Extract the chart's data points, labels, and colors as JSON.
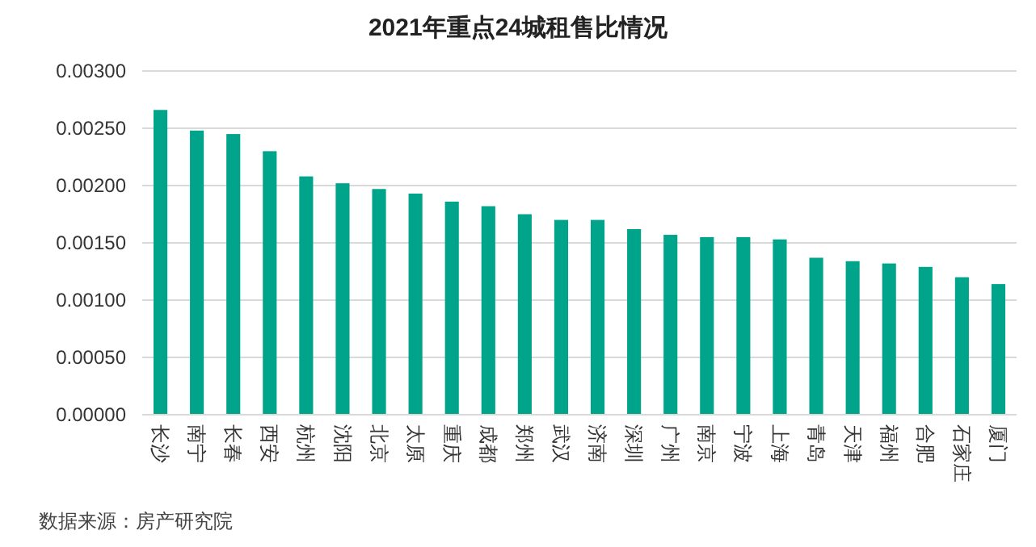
{
  "chart_data": {
    "type": "bar",
    "title": "2021年重点24城租售比情况",
    "categories": [
      "长沙",
      "南宁",
      "长春",
      "西安",
      "杭州",
      "沈阳",
      "北京",
      "太原",
      "重庆",
      "成都",
      "郑州",
      "武汉",
      "济南",
      "深圳",
      "广州",
      "南京",
      "宁波",
      "上海",
      "青岛",
      "天津",
      "福州",
      "合肥",
      "石家庄",
      "厦门"
    ],
    "values": [
      0.00266,
      0.00248,
      0.00245,
      0.0023,
      0.00208,
      0.00202,
      0.00197,
      0.00193,
      0.00186,
      0.00182,
      0.00175,
      0.0017,
      0.0017,
      0.00162,
      0.00157,
      0.00155,
      0.00155,
      0.00153,
      0.00137,
      0.00134,
      0.00132,
      0.00129,
      0.0012,
      0.00114
    ],
    "color": "#00a48a",
    "ylim": [
      0,
      0.003
    ],
    "yticks": [
      {
        "value": 0,
        "label": "0.00000"
      },
      {
        "value": 0.0005,
        "label": "0.00050"
      },
      {
        "value": 0.001,
        "label": "0.00100"
      },
      {
        "value": 0.0015,
        "label": "0.00150"
      },
      {
        "value": 0.002,
        "label": "0.00200"
      },
      {
        "value": 0.0025,
        "label": "0.00250"
      },
      {
        "value": 0.003,
        "label": "0.00300"
      }
    ],
    "grid": "y",
    "annotations": [
      "数据来源：房产研究院"
    ]
  }
}
